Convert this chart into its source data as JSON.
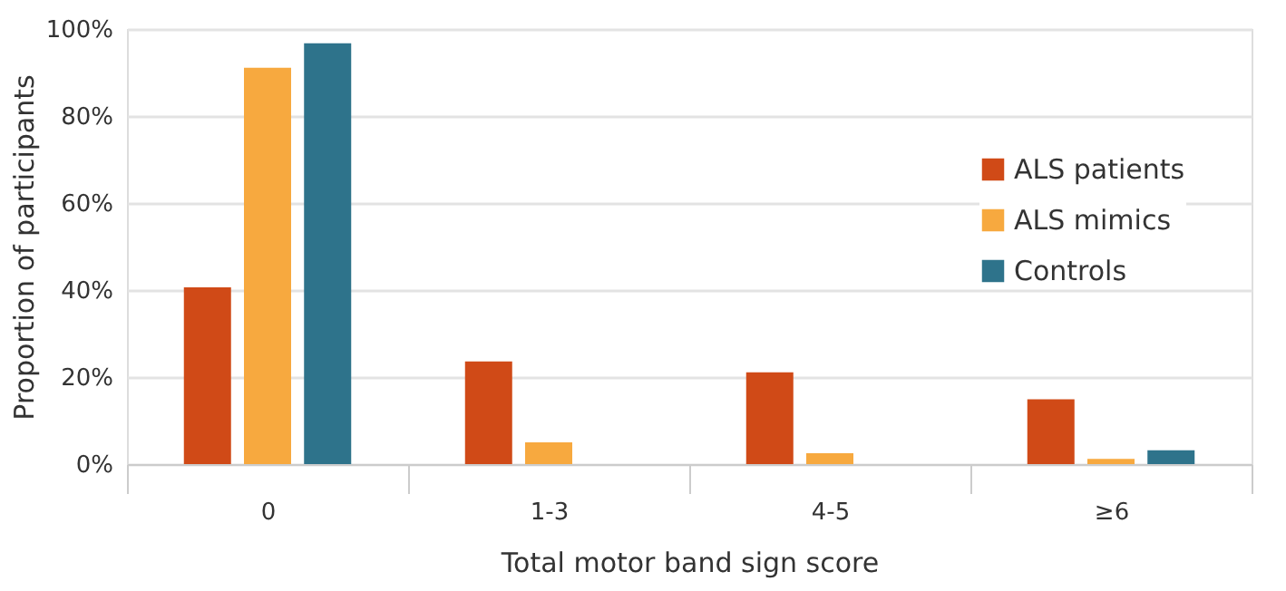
{
  "chart_data": {
    "type": "bar",
    "xlabel": "Total motor band sign score",
    "ylabel": "Proportion of participants",
    "categories": [
      "0",
      "1-3",
      "4-5",
      "≥6"
    ],
    "series": [
      {
        "name": "ALS patients",
        "color": "#d04a17",
        "values": [
          40.6,
          23.6,
          21.1,
          14.9
        ]
      },
      {
        "name": "ALS mimics",
        "color": "#f7a93f",
        "values": [
          91.1,
          5.0,
          2.5,
          1.2
        ]
      },
      {
        "name": "Controls",
        "color": "#2e738b",
        "values": [
          96.7,
          0,
          0,
          3.2
        ]
      }
    ],
    "ylim": [
      0,
      100
    ],
    "yticks": [
      {
        "value": 0,
        "label": "0%"
      },
      {
        "value": 20,
        "label": "20%"
      },
      {
        "value": 40,
        "label": "40%"
      },
      {
        "value": 60,
        "label": "60%"
      },
      {
        "value": 80,
        "label": "80%"
      },
      {
        "value": 100,
        "label": "100%"
      }
    ],
    "grid": "y",
    "legend": "right"
  }
}
